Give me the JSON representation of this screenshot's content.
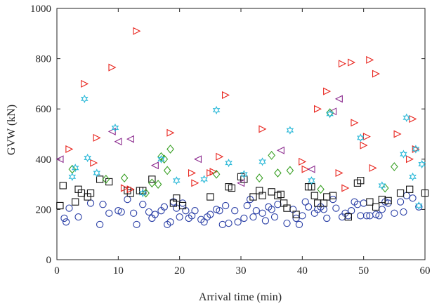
{
  "chart_data": {
    "type": "scatter",
    "title": "",
    "xlabel": "Arrival time (min)",
    "ylabel": "GVW (kN)",
    "xlim": [
      0,
      60
    ],
    "ylim": [
      0,
      1000
    ],
    "xticks": [
      0,
      10,
      20,
      30,
      40,
      50,
      60
    ],
    "yticks": [
      0,
      200,
      400,
      600,
      800,
      1000
    ],
    "grid": false,
    "legend": "none",
    "series": [
      {
        "marker": "circle",
        "color": "#2a3fa6",
        "points": [
          [
            1.2,
            165
          ],
          [
            1.5,
            150
          ],
          [
            2,
            205
          ],
          [
            3.5,
            170
          ],
          [
            5.5,
            225
          ],
          [
            7,
            140
          ],
          [
            7.5,
            220
          ],
          [
            8.5,
            185
          ],
          [
            10,
            195
          ],
          [
            10.5,
            190
          ],
          [
            11.5,
            240
          ],
          [
            12.5,
            185
          ],
          [
            13,
            140
          ],
          [
            14,
            220
          ],
          [
            15,
            190
          ],
          [
            15.5,
            165
          ],
          [
            16,
            180
          ],
          [
            17,
            195
          ],
          [
            17.5,
            210
          ],
          [
            18,
            140
          ],
          [
            18.5,
            150
          ],
          [
            19,
            230
          ],
          [
            19.5,
            205
          ],
          [
            20,
            170
          ],
          [
            20.5,
            225
          ],
          [
            21,
            195
          ],
          [
            21.5,
            165
          ],
          [
            22,
            175
          ],
          [
            22.5,
            195
          ],
          [
            23.5,
            160
          ],
          [
            24,
            150
          ],
          [
            24.5,
            170
          ],
          [
            25,
            180
          ],
          [
            26,
            200
          ],
          [
            26.5,
            195
          ],
          [
            27,
            140
          ],
          [
            27.5,
            215
          ],
          [
            28,
            145
          ],
          [
            29,
            195
          ],
          [
            29.5,
            150
          ],
          [
            30.5,
            165
          ],
          [
            31,
            215
          ],
          [
            31.5,
            240
          ],
          [
            32,
            170
          ],
          [
            32.5,
            195
          ],
          [
            33.5,
            185
          ],
          [
            34,
            155
          ],
          [
            34.5,
            210
          ],
          [
            35,
            200
          ],
          [
            35.5,
            170
          ],
          [
            36,
            220
          ],
          [
            37.5,
            145
          ],
          [
            38.5,
            200
          ],
          [
            39,
            165
          ],
          [
            39.5,
            140
          ],
          [
            40,
            175
          ],
          [
            40.5,
            230
          ],
          [
            41,
            210
          ],
          [
            42,
            185
          ],
          [
            42.5,
            200
          ],
          [
            43,
            210
          ],
          [
            43.5,
            200
          ],
          [
            44,
            165
          ],
          [
            45,
            240
          ],
          [
            45.5,
            205
          ],
          [
            46.5,
            170
          ],
          [
            47,
            185
          ],
          [
            47.5,
            175
          ],
          [
            48,
            195
          ],
          [
            48.5,
            230
          ],
          [
            49,
            220
          ],
          [
            49.5,
            175
          ],
          [
            50,
            225
          ],
          [
            50.5,
            175
          ],
          [
            51,
            175
          ],
          [
            52,
            180
          ],
          [
            52.5,
            175
          ],
          [
            53,
            200
          ],
          [
            53.5,
            230
          ],
          [
            54,
            225
          ],
          [
            55,
            185
          ],
          [
            56,
            230
          ],
          [
            56.5,
            190
          ],
          [
            57,
            255
          ],
          [
            58,
            245
          ],
          [
            59,
            210
          ]
        ]
      },
      {
        "marker": "square",
        "color": "#111111",
        "points": [
          [
            0.5,
            215
          ],
          [
            1,
            295
          ],
          [
            3,
            230
          ],
          [
            3.5,
            280
          ],
          [
            4,
            265
          ],
          [
            5,
            250
          ],
          [
            5.5,
            265
          ],
          [
            7,
            320
          ],
          [
            8.5,
            310
          ],
          [
            11.5,
            275
          ],
          [
            12,
            265
          ],
          [
            13.5,
            275
          ],
          [
            14,
            275
          ],
          [
            15.5,
            320
          ],
          [
            19,
            225
          ],
          [
            19.5,
            245
          ],
          [
            20.5,
            215
          ],
          [
            25,
            250
          ],
          [
            28,
            290
          ],
          [
            28.5,
            285
          ],
          [
            30,
            330
          ],
          [
            30.5,
            320
          ],
          [
            32,
            250
          ],
          [
            33,
            275
          ],
          [
            33.5,
            255
          ],
          [
            35,
            270
          ],
          [
            36,
            255
          ],
          [
            36.5,
            260
          ],
          [
            37,
            225
          ],
          [
            37.5,
            205
          ],
          [
            39,
            180
          ],
          [
            41,
            290
          ],
          [
            41.5,
            290
          ],
          [
            42,
            255
          ],
          [
            42.5,
            225
          ],
          [
            43.5,
            225
          ],
          [
            44,
            250
          ],
          [
            45,
            255
          ],
          [
            47.5,
            170
          ],
          [
            49,
            305
          ],
          [
            49.5,
            315
          ],
          [
            51,
            230
          ],
          [
            52,
            210
          ],
          [
            53,
            240
          ],
          [
            54,
            235
          ],
          [
            56,
            265
          ],
          [
            57.5,
            280
          ],
          [
            60,
            265
          ]
        ]
      },
      {
        "marker": "triangle-right",
        "color": "#e8231c",
        "points": [
          [
            2,
            440
          ],
          [
            4.5,
            700
          ],
          [
            6,
            385
          ],
          [
            6.5,
            485
          ],
          [
            9,
            765
          ],
          [
            11,
            285
          ],
          [
            12,
            280
          ],
          [
            13,
            910
          ],
          [
            18.5,
            505
          ],
          [
            22,
            345
          ],
          [
            22.5,
            305
          ],
          [
            25,
            345
          ],
          [
            25.5,
            350
          ],
          [
            26.5,
            410
          ],
          [
            27.5,
            655
          ],
          [
            33.5,
            520
          ],
          [
            40,
            390
          ],
          [
            40.5,
            360
          ],
          [
            42.5,
            600
          ],
          [
            44,
            670
          ],
          [
            46,
            345
          ],
          [
            46.5,
            780
          ],
          [
            47,
            285
          ],
          [
            48,
            785
          ],
          [
            48.5,
            545
          ],
          [
            50,
            455
          ],
          [
            50.5,
            490
          ],
          [
            51,
            795
          ],
          [
            51.5,
            365
          ],
          [
            52,
            740
          ],
          [
            55.5,
            500
          ],
          [
            57.5,
            400
          ],
          [
            58,
            560
          ],
          [
            58.5,
            440
          ]
        ]
      },
      {
        "marker": "triangle-left",
        "color": "#8b2a8e",
        "points": [
          [
            0.5,
            400
          ],
          [
            9,
            510
          ],
          [
            10,
            470
          ],
          [
            12,
            480
          ],
          [
            16,
            375
          ],
          [
            23,
            400
          ],
          [
            30,
            305
          ],
          [
            36.5,
            435
          ],
          [
            41.5,
            360
          ],
          [
            45,
            590
          ],
          [
            46,
            640
          ]
        ]
      },
      {
        "marker": "diamond",
        "color": "#3aa025",
        "points": [
          [
            2.5,
            360
          ],
          [
            8,
            320
          ],
          [
            11,
            325
          ],
          [
            14.5,
            265
          ],
          [
            15.5,
            305
          ],
          [
            16.5,
            300
          ],
          [
            17,
            410
          ],
          [
            17.5,
            400
          ],
          [
            18,
            355
          ],
          [
            18.5,
            440
          ],
          [
            26,
            340
          ],
          [
            33,
            325
          ],
          [
            35,
            415
          ],
          [
            36,
            345
          ],
          [
            38,
            355
          ],
          [
            43,
            280
          ],
          [
            44.5,
            585
          ],
          [
            53.5,
            285
          ],
          [
            55,
            370
          ]
        ]
      },
      {
        "marker": "star",
        "color": "#2ab8d8",
        "points": [
          [
            2.5,
            330
          ],
          [
            3,
            365
          ],
          [
            4.5,
            640
          ],
          [
            5,
            405
          ],
          [
            6.5,
            345
          ],
          [
            9.5,
            525
          ],
          [
            14,
            265
          ],
          [
            17,
            400
          ],
          [
            19.5,
            315
          ],
          [
            24,
            320
          ],
          [
            26,
            595
          ],
          [
            28,
            385
          ],
          [
            30.5,
            340
          ],
          [
            33.5,
            390
          ],
          [
            38,
            515
          ],
          [
            41.5,
            315
          ],
          [
            44.5,
            580
          ],
          [
            49.5,
            485
          ],
          [
            53,
            295
          ],
          [
            56.5,
            420
          ],
          [
            57,
            565
          ],
          [
            58,
            330
          ],
          [
            58.5,
            440
          ],
          [
            59,
            215
          ],
          [
            59.5,
            380
          ]
        ]
      }
    ]
  }
}
